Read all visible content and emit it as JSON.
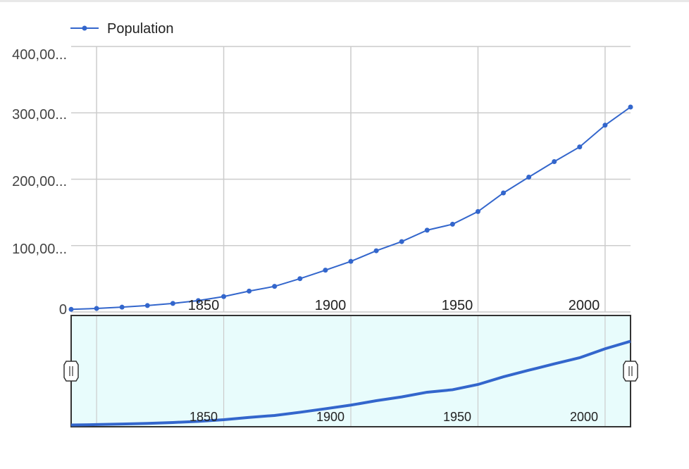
{
  "chart_data": {
    "type": "line",
    "series": [
      {
        "name": "Population",
        "color": "#3366cc",
        "x": [
          1790,
          1800,
          1810,
          1820,
          1830,
          1840,
          1850,
          1860,
          1870,
          1880,
          1890,
          1900,
          1910,
          1920,
          1930,
          1940,
          1950,
          1960,
          1970,
          1980,
          1990,
          2000,
          2010
        ],
        "values": [
          3929214,
          5308483,
          7239881,
          9638453,
          12866020,
          17069453,
          23191876,
          31443321,
          38558371,
          50189209,
          62979766,
          76212168,
          92228496,
          106021537,
          123202624,
          132164569,
          151325798,
          179323175,
          203211926,
          226545805,
          248709873,
          281421906,
          308745538
        ]
      }
    ],
    "ylim": [
      0,
      400000000
    ],
    "xlim": [
      1790,
      2010
    ],
    "y_ticks": [
      "0",
      "100,00...",
      "200,00...",
      "300,00...",
      "400,00..."
    ],
    "x_ticks": [
      "1850",
      "1900",
      "1950",
      "2000"
    ],
    "range_selector_ticks": [
      "1850",
      "1900",
      "1950",
      "2000"
    ],
    "legend": "top-left",
    "grid": true
  },
  "colors": {
    "line": "#3366cc",
    "grid": "#cccccc",
    "range_fill": "#e8fcfc",
    "range_border": "#333333"
  },
  "icons": [
    "range-handle-left-icon",
    "range-handle-right-icon"
  ]
}
